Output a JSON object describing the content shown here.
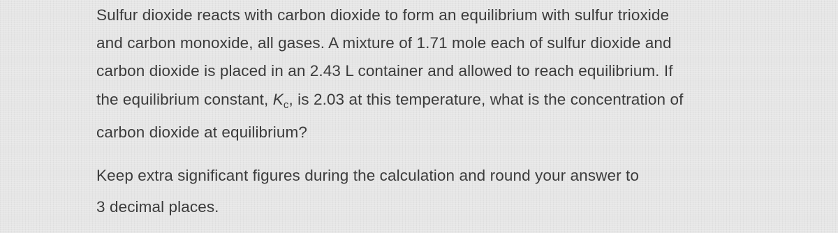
{
  "question": {
    "line1": "Sulfur dioxide reacts with carbon dioxide to form an equilibrium with sulfur trioxide",
    "line2": "and carbon monoxide, all gases. A mixture of 1.71 mole each of sulfur dioxide and",
    "line3": "carbon dioxide is placed in an 2.43 L container and allowed to reach equilibrium. If",
    "line4_before": "the equilibrium constant, ",
    "kc_symbol": "K",
    "kc_subscript": "c",
    "line4_after": ", is 2.03 at this temperature, what is the concentration of",
    "line5": "carbon dioxide at equilibrium?"
  },
  "instruction": {
    "line1": "Keep extra significant figures during the calculation and round your answer to",
    "line2": "3 decimal places."
  }
}
